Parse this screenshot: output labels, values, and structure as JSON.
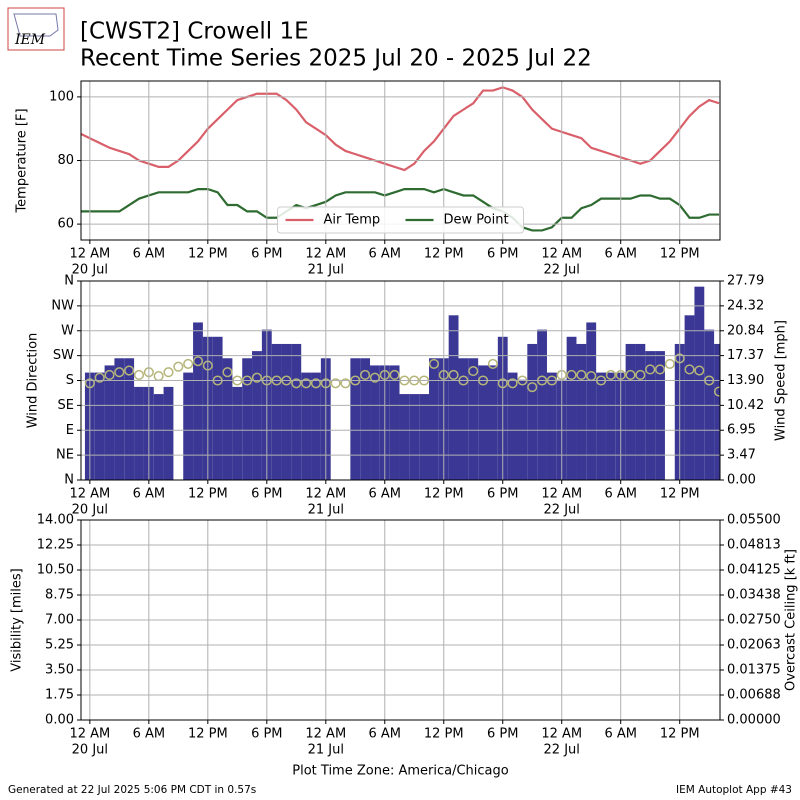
{
  "header": {
    "logo_text": "IEM",
    "title": "[CWST2] Crowell 1E",
    "subtitle": "Recent Time Series 2025 Jul 20 - 2025 Jul 22"
  },
  "footer": {
    "left": "Generated at 22 Jul 2025 5:06 PM CDT in 0.57s",
    "right": "IEM Autoplot App #43"
  },
  "chart_data": [
    {
      "type": "line",
      "ylabel": "Temperature [F]",
      "x": [
        -1,
        0,
        1,
        2,
        3,
        4,
        5,
        6,
        7,
        8,
        9,
        10,
        11,
        12,
        13,
        14,
        15,
        16,
        17,
        18,
        19,
        20,
        21,
        22,
        23,
        24,
        25,
        26,
        27,
        28,
        29,
        30,
        31,
        32,
        33,
        34,
        35,
        36,
        37,
        38,
        39,
        40,
        41,
        42,
        43,
        44,
        45,
        46,
        47,
        48,
        49,
        50,
        51,
        52,
        53,
        54,
        55,
        56,
        57,
        58,
        59,
        60,
        61,
        62,
        63,
        64
      ],
      "xlim": [
        -0.9,
        64.1
      ],
      "xticks": [
        {
          "value": 0,
          "label": "12 AM"
        },
        {
          "value": 6,
          "label": "6 AM"
        },
        {
          "value": 12,
          "label": "12 PM"
        },
        {
          "value": 18,
          "label": "6 PM"
        },
        {
          "value": 24,
          "label": "12 AM"
        },
        {
          "value": 30,
          "label": "6 AM"
        },
        {
          "value": 36,
          "label": "12 PM"
        },
        {
          "value": 42,
          "label": "6 PM"
        },
        {
          "value": 48,
          "label": "12 AM"
        },
        {
          "value": 54,
          "label": "6 AM"
        },
        {
          "value": 60,
          "label": "12 PM"
        }
      ],
      "xdate_ticks": [
        {
          "value": 0,
          "label": "20 Jul"
        },
        {
          "value": 24,
          "label": "21 Jul"
        },
        {
          "value": 48,
          "label": "22 Jul"
        }
      ],
      "ylim": [
        55,
        105
      ],
      "yticks": [
        60,
        80,
        100
      ],
      "grid": true,
      "legend": "lower center",
      "series": [
        {
          "name": "Air Temp",
          "color": "#d9606a",
          "values": [
            88.5,
            87,
            85.5,
            84,
            83,
            82,
            80,
            79,
            78,
            78,
            80,
            83,
            86,
            90,
            93,
            96,
            99,
            100,
            101,
            101,
            101,
            99,
            96,
            92,
            90,
            88,
            85,
            83,
            82,
            81,
            80,
            79,
            78,
            77,
            79,
            83,
            86,
            90,
            94,
            96,
            98,
            102,
            102,
            103,
            102,
            100,
            96,
            93,
            90,
            89,
            88,
            87,
            84,
            83,
            82,
            81,
            80,
            79,
            80,
            83,
            86,
            90,
            94,
            97,
            99,
            98
          ]
        },
        {
          "name": "Dew Point",
          "color": "#2e6b30",
          "values": [
            64,
            64,
            64,
            64,
            64,
            66,
            68,
            69,
            70,
            70,
            70,
            70,
            71,
            71,
            70,
            66,
            66,
            64,
            64,
            62,
            62,
            64,
            66,
            65,
            66,
            67,
            69,
            70,
            70,
            70,
            70,
            69,
            70,
            71,
            71,
            71,
            70,
            71,
            70,
            69,
            69,
            67,
            65,
            64,
            62,
            59,
            58,
            58,
            59,
            62,
            62,
            65,
            66,
            68,
            68,
            68,
            68,
            69,
            69,
            68,
            68,
            66,
            62,
            62,
            63,
            63
          ]
        }
      ]
    },
    {
      "type": "bar",
      "ylabel": "Wind Direction",
      "y2label": "Wind Speed [mph]",
      "x": [
        0,
        1,
        2,
        3,
        4,
        5,
        6,
        7,
        8,
        9,
        10,
        11,
        12,
        13,
        14,
        15,
        16,
        17,
        18,
        19,
        20,
        21,
        22,
        23,
        24,
        25,
        26,
        27,
        28,
        29,
        30,
        31,
        32,
        33,
        34,
        35,
        36,
        37,
        38,
        39,
        40,
        41,
        42,
        43,
        44,
        45,
        46,
        47,
        48,
        49,
        50,
        51,
        52,
        53,
        54,
        55,
        56,
        57,
        58,
        59,
        60,
        61,
        62,
        63,
        64
      ],
      "xlim": [
        -0.9,
        64.1
      ],
      "xticks": [
        {
          "value": 0,
          "label": "12 AM"
        },
        {
          "value": 6,
          "label": "6 AM"
        },
        {
          "value": 12,
          "label": "12 PM"
        },
        {
          "value": 18,
          "label": "6 PM"
        },
        {
          "value": 24,
          "label": "12 AM"
        },
        {
          "value": 30,
          "label": "6 AM"
        },
        {
          "value": 36,
          "label": "12 PM"
        },
        {
          "value": 42,
          "label": "6 PM"
        },
        {
          "value": 48,
          "label": "12 AM"
        },
        {
          "value": 54,
          "label": "6 AM"
        },
        {
          "value": 60,
          "label": "12 PM"
        }
      ],
      "xdate_ticks": [
        {
          "value": 0,
          "label": "20 Jul"
        },
        {
          "value": 24,
          "label": "21 Jul"
        },
        {
          "value": 48,
          "label": "22 Jul"
        }
      ],
      "ylim": [
        0,
        360
      ],
      "yticks": [
        {
          "value": 0,
          "label": "N"
        },
        {
          "value": 45,
          "label": "NE"
        },
        {
          "value": 90,
          "label": "E"
        },
        {
          "value": 135,
          "label": "SE"
        },
        {
          "value": 180,
          "label": "S"
        },
        {
          "value": 225,
          "label": "SW"
        },
        {
          "value": 270,
          "label": "W"
        },
        {
          "value": 315,
          "label": "NW"
        },
        {
          "value": 360,
          "label": "N"
        }
      ],
      "y2lim": [
        0,
        27.79
      ],
      "y2ticks": [
        {
          "value": 0,
          "label": "0.00"
        },
        3.47,
        6.95,
        10.42,
        {
          "value": 13.9,
          "label": "13.90"
        },
        17.37,
        20.84,
        24.32,
        27.79
      ],
      "grid": true,
      "series": [
        {
          "type": "bar",
          "axis": "y2",
          "color": "#3a3894",
          "values": [
            15,
            15,
            16,
            17,
            17,
            13,
            13,
            12,
            13,
            null,
            15,
            22,
            20,
            20,
            17,
            13,
            17,
            18,
            21,
            19,
            19,
            19,
            15,
            15,
            17,
            null,
            null,
            17,
            17,
            16,
            16,
            16,
            12,
            12,
            12,
            17,
            17,
            23,
            17,
            17,
            16,
            16,
            20,
            15,
            14,
            19,
            21,
            15,
            14,
            20,
            19,
            22,
            15,
            15,
            15,
            19,
            19,
            18,
            18,
            null,
            19,
            23,
            27,
            21,
            19
          ]
        },
        {
          "type": "scatter",
          "color": "#b5b57a",
          "values": [
            175,
            185,
            190,
            195,
            198,
            190,
            195,
            188,
            195,
            205,
            210,
            215,
            207,
            180,
            195,
            180,
            180,
            185,
            180,
            180,
            180,
            175,
            175,
            175,
            175,
            175,
            175,
            180,
            190,
            185,
            190,
            190,
            180,
            180,
            180,
            210,
            190,
            190,
            180,
            197,
            180,
            210,
            175,
            175,
            180,
            168,
            180,
            180,
            190,
            190,
            190,
            188,
            180,
            190,
            190,
            190,
            190,
            200,
            200,
            210,
            220,
            200,
            198,
            180,
            160
          ]
        }
      ]
    },
    {
      "type": "line",
      "ylabel": "Visibility [miles]",
      "y2label": "Overcast Ceiling [k ft]",
      "y2label_color": "#008000",
      "xlabel": "Plot Time Zone: America/Chicago",
      "xlim": [
        -0.9,
        64.1
      ],
      "xticks": [
        {
          "value": 0,
          "label": "12 AM"
        },
        {
          "value": 6,
          "label": "6 AM"
        },
        {
          "value": 12,
          "label": "12 PM"
        },
        {
          "value": 18,
          "label": "6 PM"
        },
        {
          "value": 24,
          "label": "12 AM"
        },
        {
          "value": 30,
          "label": "6 AM"
        },
        {
          "value": 36,
          "label": "12 PM"
        },
        {
          "value": 42,
          "label": "6 PM"
        },
        {
          "value": 48,
          "label": "12 AM"
        },
        {
          "value": 54,
          "label": "6 AM"
        },
        {
          "value": 60,
          "label": "12 PM"
        }
      ],
      "xdate_ticks": [
        {
          "value": 0,
          "label": "20 Jul"
        },
        {
          "value": 24,
          "label": "21 Jul"
        },
        {
          "value": 48,
          "label": "22 Jul"
        }
      ],
      "ylim": [
        0,
        14
      ],
      "yticks": [
        {
          "value": 0,
          "label": "0.00"
        },
        1.75,
        {
          "value": 3.5,
          "label": "3.50"
        },
        5.25,
        {
          "value": 7,
          "label": "7.00"
        },
        8.75,
        {
          "value": 10.5,
          "label": "10.50"
        },
        12.25,
        {
          "value": 14,
          "label": "14.00"
        }
      ],
      "y2lim": [
        0,
        0.055
      ],
      "y2ticks": [
        {
          "value": 0,
          "label": "0.00000"
        },
        {
          "value": 0.006875,
          "label": "0.00688"
        },
        {
          "value": 0.01375,
          "label": "0.01375"
        },
        {
          "value": 0.020625,
          "label": "0.02063"
        },
        {
          "value": 0.0275,
          "label": "0.02750"
        },
        {
          "value": 0.034375,
          "label": "0.03438"
        },
        {
          "value": 0.04125,
          "label": "0.04125"
        },
        {
          "value": 0.048125,
          "label": "0.04813"
        },
        {
          "value": 0.055,
          "label": "0.05500"
        }
      ],
      "grid": true,
      "series": []
    }
  ]
}
